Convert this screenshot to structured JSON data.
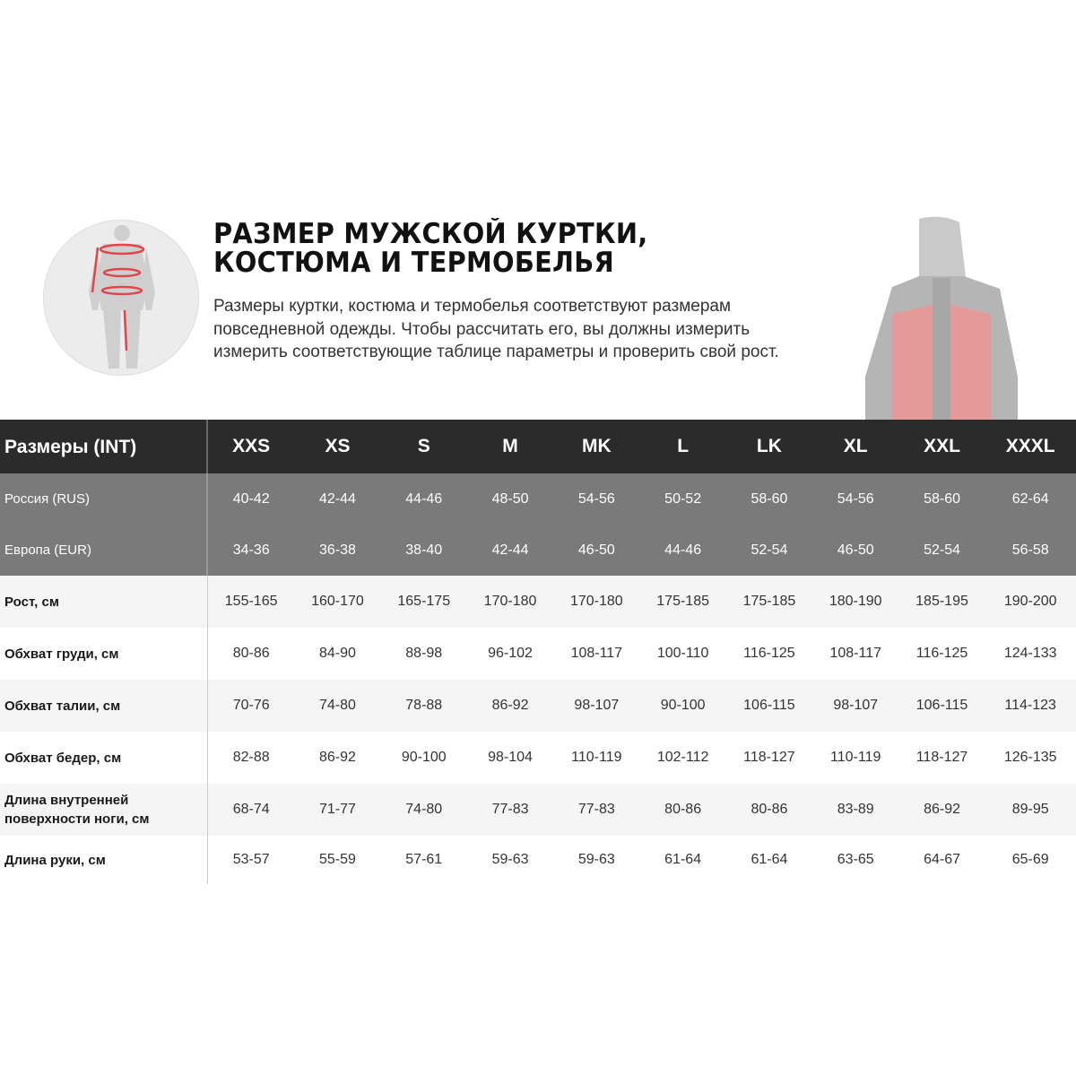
{
  "title": "РАЗМЕР МУЖСКОЙ КУРТКИ, КОСТЮМА И ТЕРМОБЕЛЬЯ",
  "description": "Размеры куртки, костюма и термобелья соответствуют размерам повседневной одежды. Чтобы рассчитать его, вы должны измерить измерить соответствующие таблице параметры и проверить свой рост.",
  "colors": {
    "header": "#2b2b2b",
    "subheader": "#7a7a7a",
    "accent": "#e0464a"
  },
  "table": {
    "header_label": "Размеры (INT)",
    "sizes": [
      "XXS",
      "XS",
      "S",
      "M",
      "MK",
      "L",
      "LK",
      "XL",
      "XXL",
      "XXXL"
    ],
    "rows": [
      {
        "label": "Россия (RUS)",
        "values": [
          "40-42",
          "42-44",
          "44-46",
          "48-50",
          "54-56",
          "50-52",
          "58-60",
          "54-56",
          "58-60",
          "62-64"
        ]
      },
      {
        "label": "Европа (EUR)",
        "values": [
          "34-36",
          "36-38",
          "38-40",
          "42-44",
          "46-50",
          "44-46",
          "52-54",
          "46-50",
          "52-54",
          "56-58"
        ]
      },
      {
        "label": "Рост, см",
        "values": [
          "155-165",
          "160-170",
          "165-175",
          "170-180",
          "170-180",
          "175-185",
          "175-185",
          "180-190",
          "185-195",
          "190-200"
        ]
      },
      {
        "label": "Обхват груди, см",
        "values": [
          "80-86",
          "84-90",
          "88-98",
          "96-102",
          "108-117",
          "100-110",
          "116-125",
          "108-117",
          "116-125",
          "124-133"
        ]
      },
      {
        "label": "Обхват талии, см",
        "values": [
          "70-76",
          "74-80",
          "78-88",
          "86-92",
          "98-107",
          "90-100",
          "106-115",
          "98-107",
          "106-115",
          "114-123"
        ]
      },
      {
        "label": "Обхват бедер, см",
        "values": [
          "82-88",
          "86-92",
          "90-100",
          "98-104",
          "110-119",
          "102-112",
          "118-127",
          "110-119",
          "118-127",
          "126-135"
        ]
      },
      {
        "label": "Длина внутренней поверхности ноги, см",
        "values": [
          "68-74",
          "71-77",
          "74-80",
          "77-83",
          "77-83",
          "80-86",
          "80-86",
          "83-89",
          "86-92",
          "89-95"
        ]
      },
      {
        "label": "Длина руки, см",
        "values": [
          "53-57",
          "55-59",
          "57-61",
          "59-63",
          "59-63",
          "61-64",
          "61-64",
          "63-65",
          "64-67",
          "65-69"
        ]
      }
    ]
  }
}
